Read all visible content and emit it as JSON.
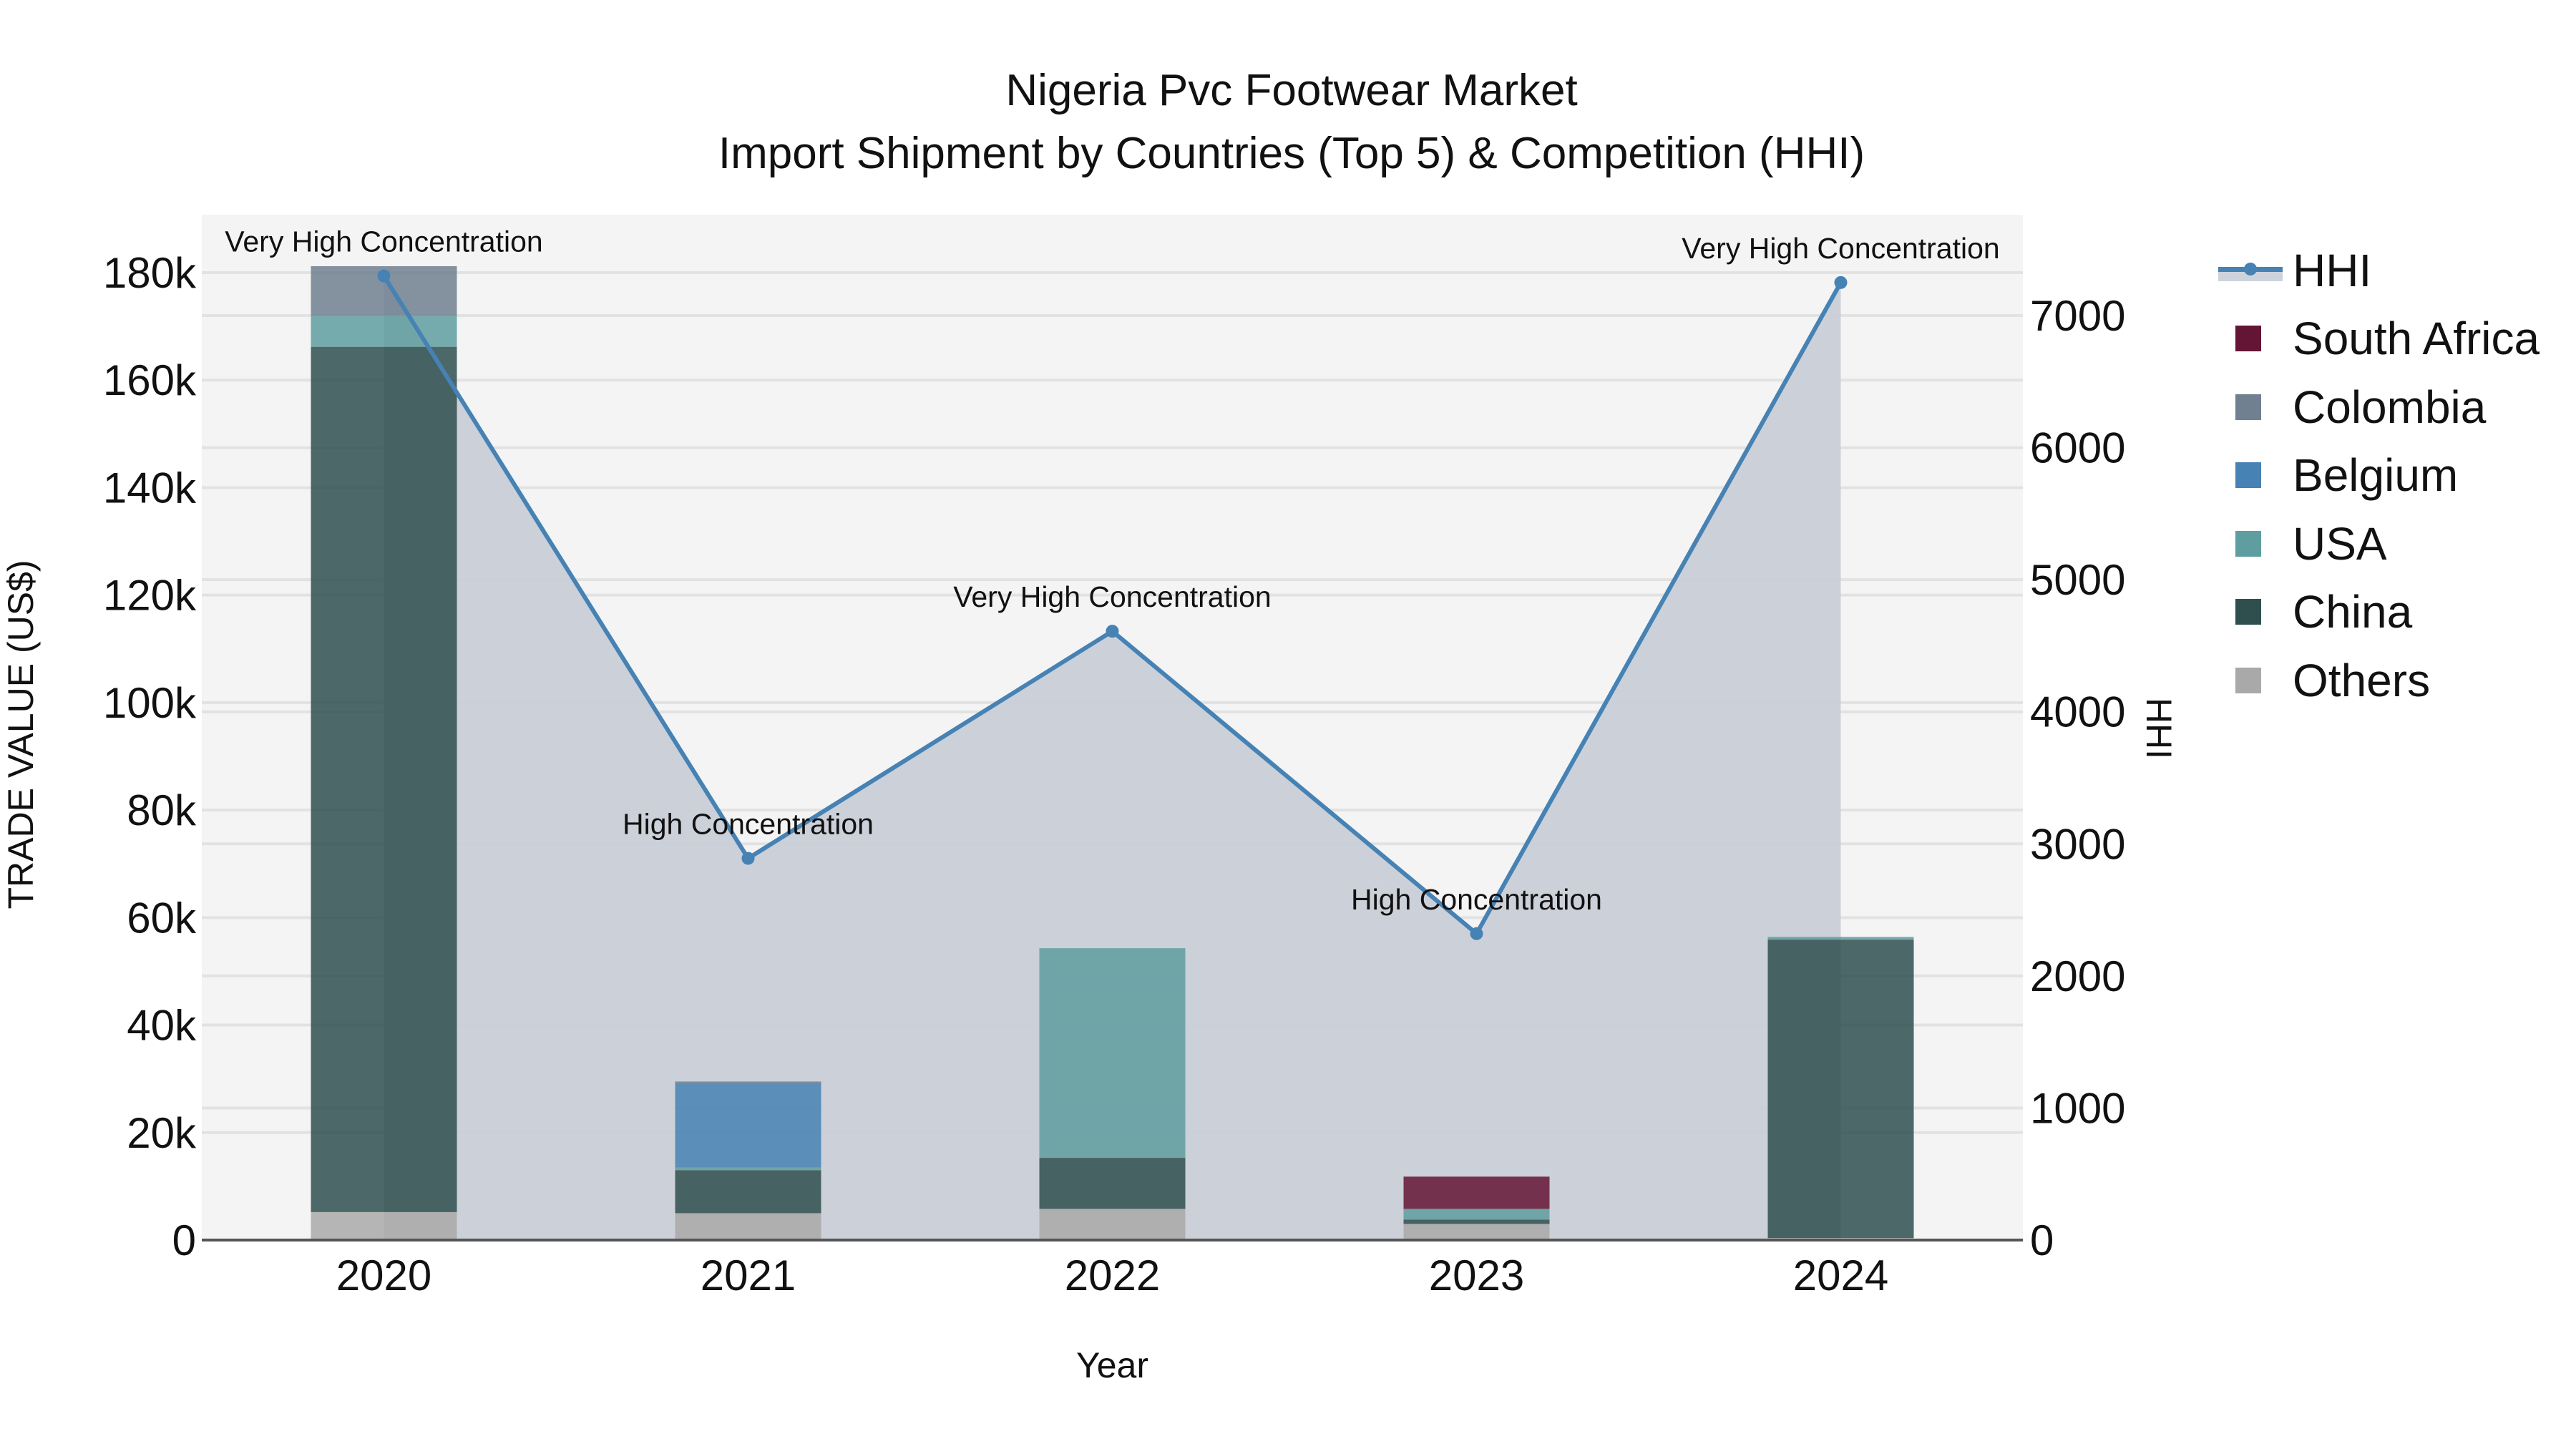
{
  "title": {
    "line1": "Nigeria Pvc Footwear Market",
    "line2": "Import Shipment by Countries (Top 5) & Competition (HHI)"
  },
  "axes": {
    "x_title": "Year",
    "y_left_title": "TRADE VALUE (US$)",
    "y_right_title": "HHI",
    "y_left_ticks": [
      "0",
      "20k",
      "40k",
      "60k",
      "80k",
      "100k",
      "120k",
      "140k",
      "160k",
      "180k"
    ],
    "y_right_ticks": [
      "0",
      "1000",
      "2000",
      "3000",
      "4000",
      "5000",
      "6000",
      "7000"
    ],
    "x_ticks": [
      "2020",
      "2021",
      "2022",
      "2023",
      "2024"
    ]
  },
  "legend": [
    {
      "label": "HHI",
      "type": "line",
      "color": "#4682b4"
    },
    {
      "label": "South Africa",
      "color": "#641535"
    },
    {
      "label": "Colombia",
      "color": "#708090"
    },
    {
      "label": "Belgium",
      "color": "#4682b4"
    },
    {
      "label": "USA",
      "color": "#5f9ea0"
    },
    {
      "label": "China",
      "color": "#2f4f4f"
    },
    {
      "label": "Others",
      "color": "#a9a9a9"
    }
  ],
  "annotations": [
    {
      "year": "2020",
      "text": "Very High Concentration"
    },
    {
      "year": "2021",
      "text": "High Concentration"
    },
    {
      "year": "2022",
      "text": "Very High Concentration"
    },
    {
      "year": "2023",
      "text": "High Concentration"
    },
    {
      "year": "2024",
      "text": "Very High Concentration"
    }
  ],
  "colors": {
    "plot_bg": "#f4f4f4",
    "hhi_fill": "#c9ced6",
    "hhi_line": "#4682b4",
    "grid": "#e2e2e2"
  },
  "chart_data": {
    "type": "bar",
    "title": "Nigeria Pvc Footwear Market — Import Shipment by Countries (Top 5) & Competition (HHI)",
    "xlabel": "Year",
    "ylabel": "TRADE VALUE (US$)",
    "y2label": "HHI",
    "ylim": [
      0,
      190000
    ],
    "y2lim": [
      0,
      7600
    ],
    "stacked": true,
    "grid": true,
    "legend_position": "right",
    "categories": [
      "2020",
      "2021",
      "2022",
      "2023",
      "2024"
    ],
    "series": [
      {
        "name": "Others",
        "color": "#a9a9a9",
        "values": [
          5200,
          5000,
          5800,
          3000,
          400
        ]
      },
      {
        "name": "China",
        "color": "#2f4f4f",
        "values": [
          161000,
          8000,
          9500,
          800,
          55500
        ]
      },
      {
        "name": "USA",
        "color": "#5f9ea0",
        "values": [
          5800,
          500,
          39000,
          2000,
          500
        ]
      },
      {
        "name": "Belgium",
        "color": "#4682b4",
        "values": [
          0,
          15700,
          0,
          0,
          0
        ]
      },
      {
        "name": "Colombia",
        "color": "#708090",
        "values": [
          9200,
          300,
          0,
          0,
          0
        ]
      },
      {
        "name": "South Africa",
        "color": "#641535",
        "values": [
          0,
          0,
          0,
          6000,
          0
        ]
      }
    ],
    "line_series": {
      "name": "HHI",
      "axis": "right",
      "color": "#4682b4",
      "fill": "tozeroy",
      "values": [
        7300,
        2890,
        4610,
        2320,
        7250
      ],
      "labels": [
        "Very High Concentration",
        "High Concentration",
        "Very High Concentration",
        "High Concentration",
        "Very High Concentration"
      ]
    }
  }
}
